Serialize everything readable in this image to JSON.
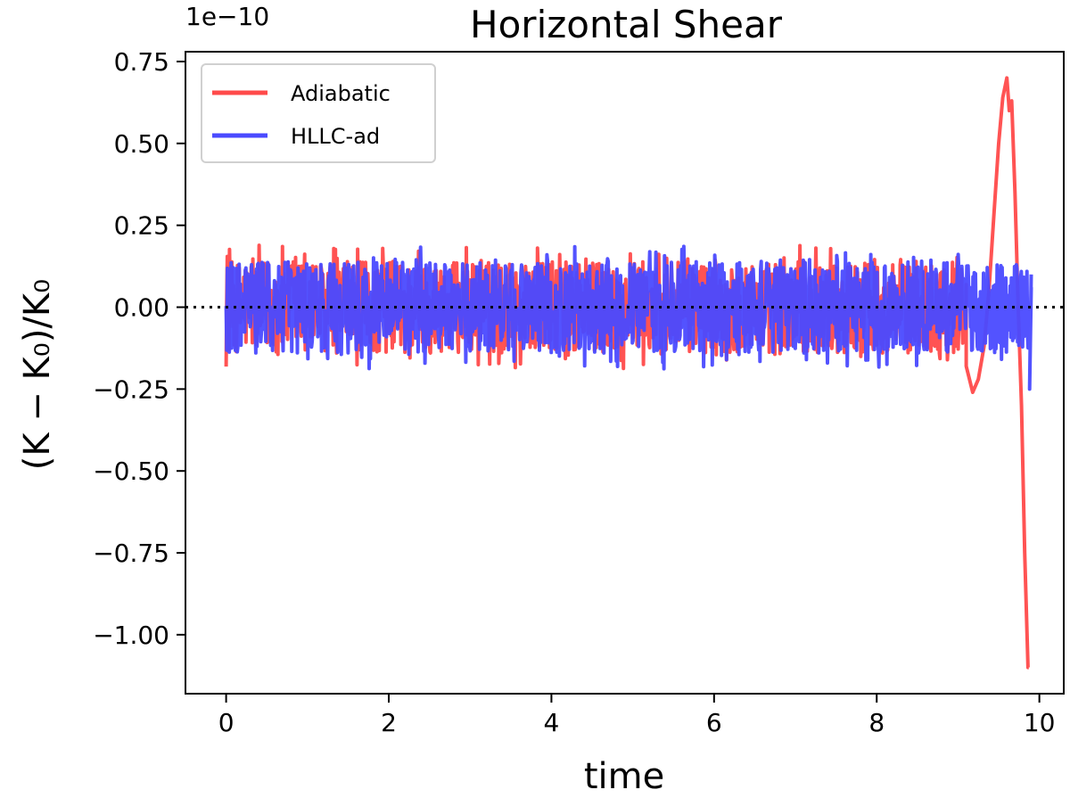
{
  "chart_data": {
    "type": "line",
    "title": "Horizontal Shear",
    "xlabel": "time",
    "ylabel": "(K − K₀)/K₀",
    "offset_text": "1e−10",
    "y_scale_factor": 1e-10,
    "xlim": [
      -0.5,
      10.3
    ],
    "ylim": [
      -1.18,
      0.78
    ],
    "x_ticks": [
      0,
      2,
      4,
      6,
      8,
      10
    ],
    "x_tick_labels": [
      "0",
      "2",
      "4",
      "6",
      "8",
      "10"
    ],
    "y_ticks": [
      0.75,
      0.5,
      0.25,
      0.0,
      -0.25,
      -0.5,
      -0.75,
      -1.0
    ],
    "y_tick_labels": [
      "0.75",
      "0.50",
      "0.25",
      "0.00",
      "−0.25",
      "−0.50",
      "−0.75",
      "−1.00"
    ],
    "grid": false,
    "legend_position": "top-left",
    "reference_line": {
      "y": 0,
      "style": "dotted",
      "color": "#000000"
    },
    "series": [
      {
        "name": "Adiabatic",
        "color": "#ff4a4a",
        "noise_amplitude": 0.14,
        "noise_range": [
          0.0,
          9.1
        ],
        "x": [
          9.1,
          9.18,
          9.25,
          9.32,
          9.38,
          9.44,
          9.5,
          9.55,
          9.6,
          9.63,
          9.66,
          9.7,
          9.74,
          9.78,
          9.82,
          9.86,
          9.87
        ],
        "y": [
          -0.18,
          -0.26,
          -0.22,
          -0.12,
          0.05,
          0.28,
          0.5,
          0.64,
          0.7,
          0.6,
          0.63,
          0.35,
          0.0,
          -0.3,
          -0.75,
          -1.1,
          -1.1
        ]
      },
      {
        "name": "HLLC-ad",
        "color": "#4a4aff",
        "noise_amplitude": 0.14,
        "noise_range": [
          0.0,
          9.9
        ],
        "x": [],
        "y": []
      }
    ]
  }
}
